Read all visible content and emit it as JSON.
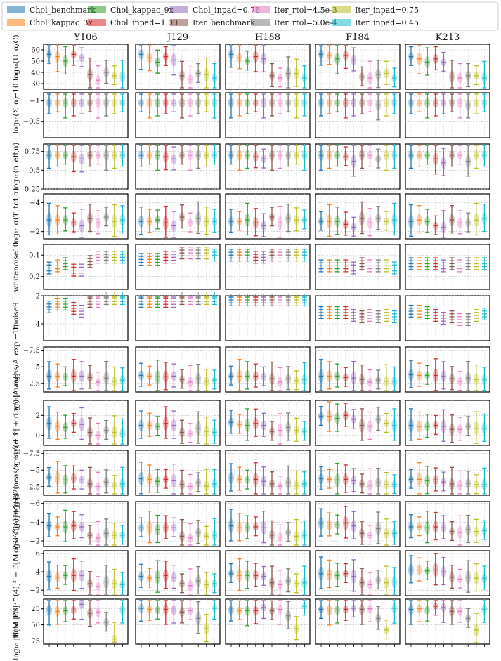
{
  "chart_data": {
    "type": "violin-grid",
    "legend": {
      "placement": "top",
      "entries": [
        {
          "name": "Chol_benchmark",
          "color": "#1f77b4"
        },
        {
          "name": "Chol_kappac_3x",
          "color": "#ff7f0e"
        },
        {
          "name": "Chol_kappac_9x",
          "color": "#2ca02c"
        },
        {
          "name": "Chol_inpad=1.00",
          "color": "#d62728"
        },
        {
          "name": "Chol_inpad=0.76",
          "color": "#9467bd"
        },
        {
          "name": "Iter_benchmark",
          "color": "#8c564b"
        },
        {
          "name": "Iter_rtol=4.5e-3",
          "color": "#e377c2"
        },
        {
          "name": "Iter_rtol=5.0e-4",
          "color": "#7f7f7f"
        },
        {
          "name": "Iter_inpad=0.75",
          "color": "#bcbd22"
        },
        {
          "name": "Iter_inpad=0.45",
          "color": "#17becf"
        }
      ]
    },
    "columns": [
      "Y106",
      "J129",
      "H158",
      "F184",
      "K213"
    ],
    "rows": [
      {
        "ylabel": "−10 log₁₀(U_α/C)",
        "ylim": [
          25,
          65
        ],
        "inverted": false,
        "ticks": [
          30,
          40,
          50,
          60
        ],
        "grid": true,
        "values": [
          [
            56,
            54,
            50,
            56,
            53,
            38,
            33,
            40,
            37,
            36
          ],
          [
            56,
            53,
            49,
            54,
            51,
            37,
            34,
            39,
            38,
            35
          ],
          [
            56,
            53,
            50,
            54,
            52,
            37,
            35,
            39,
            39,
            35
          ],
          [
            56,
            55,
            52,
            55,
            51,
            36,
            35,
            38,
            39,
            35
          ],
          [
            54,
            52,
            49,
            52,
            49,
            36,
            35,
            37,
            37,
            35
          ]
        ]
      },
      {
        "ylabel": "log₁₀(Σ_α)",
        "ylim": [
          -1.2,
          -0.1
        ],
        "inverted": true,
        "ticks": [
          -1.0,
          -0.5
        ],
        "grid": true,
        "values": [
          [
            -0.95,
            -0.95,
            -0.95,
            -0.95,
            -0.95,
            -0.95,
            -0.95,
            -0.95,
            -0.95,
            -0.95
          ],
          [
            -0.95,
            -0.95,
            -0.95,
            -0.95,
            -0.95,
            -0.95,
            -0.95,
            -0.95,
            -0.95,
            -0.95
          ],
          [
            -0.95,
            -0.95,
            -0.95,
            -0.95,
            -0.95,
            -0.95,
            -0.95,
            -0.95,
            -0.95,
            -0.95
          ],
          [
            -0.95,
            -0.95,
            -0.95,
            -0.95,
            -0.95,
            -0.95,
            -0.95,
            -0.9,
            -0.95,
            -0.95
          ],
          [
            -0.95,
            -0.95,
            -0.95,
            -0.95,
            -0.95,
            -0.95,
            -0.95,
            -0.9,
            -0.95,
            -0.95
          ]
        ]
      },
      {
        "ylabel": "log₁₀⟨n̄_eff,α⟩",
        "ylim": [
          0.25,
          0.85
        ],
        "inverted": false,
        "ticks": [
          0.25,
          0.5,
          0.75
        ],
        "grid": true,
        "values": [
          [
            0.7,
            0.7,
            0.7,
            0.68,
            0.65,
            0.7,
            0.7,
            0.7,
            0.7,
            0.7
          ],
          [
            0.7,
            0.7,
            0.7,
            0.68,
            0.65,
            0.7,
            0.7,
            0.7,
            0.7,
            0.7
          ],
          [
            0.7,
            0.7,
            0.7,
            0.68,
            0.65,
            0.7,
            0.7,
            0.7,
            0.7,
            0.7
          ],
          [
            0.7,
            0.7,
            0.7,
            0.68,
            0.62,
            0.7,
            0.7,
            0.65,
            0.7,
            0.7
          ],
          [
            0.7,
            0.7,
            0.7,
            0.65,
            0.6,
            0.7,
            0.7,
            0.62,
            0.7,
            0.7
          ]
        ]
      },
      {
        "ylabel": "log₁₀ σ(T_tot,α)",
        "ylim": [
          -4.6,
          -1.5
        ],
        "inverted": true,
        "ticks": [
          -4,
          -2
        ],
        "grid": true,
        "values": [
          [
            -2.8,
            -2.8,
            -2.8,
            -2.6,
            -2.4,
            -2.9,
            -2.6,
            -3.0,
            -2.7,
            -2.8
          ],
          [
            -2.7,
            -2.7,
            -2.8,
            -2.6,
            -2.4,
            -3.0,
            -2.6,
            -2.9,
            -2.7,
            -2.7
          ],
          [
            -2.7,
            -2.7,
            -2.8,
            -2.6,
            -2.4,
            -3.0,
            -2.6,
            -2.9,
            -2.8,
            -2.8
          ],
          [
            -2.7,
            -2.7,
            -2.7,
            -2.5,
            -2.3,
            -2.9,
            -2.6,
            -2.9,
            -2.7,
            -2.8
          ],
          [
            -2.7,
            -2.8,
            -2.7,
            -2.4,
            -2.3,
            -2.8,
            -2.6,
            -2.6,
            -2.8,
            -2.9
          ]
        ]
      },
      {
        "ylabel": "whitenoise10",
        "ylim": [
          0.05,
          0.26
        ],
        "inverted": true,
        "ticks": [
          0.1,
          0.2
        ],
        "grid": true,
        "values": [
          [
            0.16,
            0.15,
            0.14,
            0.17,
            0.17,
            0.13,
            0.11,
            0.11,
            0.11,
            0.11
          ],
          [
            0.12,
            0.12,
            0.12,
            0.11,
            0.11,
            0.09,
            0.09,
            0.09,
            0.09,
            0.1
          ],
          [
            0.1,
            0.1,
            0.1,
            0.11,
            0.11,
            0.1,
            0.1,
            0.1,
            0.1,
            0.1
          ],
          [
            0.15,
            0.15,
            0.15,
            0.15,
            0.16,
            0.14,
            0.15,
            0.15,
            0.15,
            0.16
          ],
          [
            0.14,
            0.14,
            0.14,
            0.14,
            0.15,
            0.14,
            0.15,
            0.14,
            0.14,
            0.14
          ]
        ]
      },
      {
        "ylabel": "1fnoise9",
        "ylim": [
          2,
          5.2
        ],
        "inverted": true,
        "ticks": [
          2,
          4
        ],
        "grid": true,
        "values": [
          [
            2.8,
            2.6,
            2.6,
            2.9,
            3.1,
            2.4,
            2.4,
            2.2,
            2.2,
            2.2
          ],
          [
            2.4,
            2.4,
            2.4,
            2.4,
            2.4,
            2.2,
            2.2,
            2.2,
            2.2,
            2.2
          ],
          [
            2.3,
            2.3,
            2.3,
            2.3,
            2.3,
            2.3,
            2.3,
            2.3,
            2.3,
            2.3
          ],
          [
            3.2,
            3.2,
            3.2,
            3.2,
            3.4,
            3.5,
            3.4,
            3.5,
            3.4,
            3.5
          ],
          [
            3.1,
            3.1,
            3.2,
            3.4,
            3.6,
            3.5,
            3.7,
            3.7,
            3.4,
            3.3
          ]
        ]
      },
      {
        "ylabel": "log₁₀|A_meas/A_exp − 1|",
        "ylim": [
          -8,
          -1.2
        ],
        "inverted": true,
        "ticks": [
          -7.5,
          -5.0,
          -2.5
        ],
        "grid": true,
        "values": [
          [
            -3.6,
            -3.6,
            -3.5,
            -3.6,
            -3.6,
            -3.4,
            -2.7,
            -3.3,
            -2.8,
            -3.0
          ],
          [
            -3.7,
            -3.6,
            -3.5,
            -3.5,
            -3.6,
            -3.1,
            -2.7,
            -3.2,
            -2.8,
            -3.0
          ],
          [
            -3.6,
            -3.6,
            -3.6,
            -3.6,
            -3.5,
            -3.2,
            -2.7,
            -3.2,
            -2.9,
            -3.1
          ],
          [
            -3.6,
            -3.6,
            -3.6,
            -3.4,
            -3.3,
            -3.1,
            -2.7,
            -3.0,
            -2.8,
            -2.8
          ],
          [
            -3.8,
            -3.7,
            -3.7,
            -3.7,
            -3.6,
            -3.2,
            -2.8,
            -3.3,
            -3.1,
            -3.1
          ]
        ]
      },
      {
        "ylabel": "log₁₀[√(d_x² + d_y²) [mas]]",
        "ylim": [
          -1,
          3.5
        ],
        "inverted": false,
        "ticks": [
          0,
          2
        ],
        "grid": true,
        "values": [
          [
            1.2,
            0.9,
            0.8,
            1.2,
            1.1,
            0.3,
            0.0,
            0.5,
            0.3,
            0.2
          ],
          [
            1.0,
            1.0,
            0.9,
            1.2,
            1.0,
            0.3,
            0.2,
            0.7,
            0.4,
            0.3
          ],
          [
            1.3,
            1.1,
            1.0,
            1.2,
            1.0,
            0.4,
            0.5,
            0.8,
            0.5,
            0.4
          ],
          [
            1.9,
            1.9,
            1.7,
            2.0,
            1.6,
            1.0,
            0.9,
            1.6,
            1.2,
            1.0
          ],
          [
            1.0,
            0.9,
            0.9,
            1.0,
            0.9,
            0.6,
            0.6,
            0.9,
            0.7,
            0.7
          ]
        ]
      },
      {
        "ylabel": "log₁₀|s_meas/s_exp − 1|",
        "ylim": [
          -8,
          -1.2
        ],
        "inverted": true,
        "ticks": [
          -7.5,
          -5.0,
          -2.5
        ],
        "grid": true,
        "values": [
          [
            -3.9,
            -3.8,
            -3.5,
            -3.8,
            -3.5,
            -2.9,
            -2.5,
            -3.2,
            -2.7,
            -2.9
          ],
          [
            -3.7,
            -3.6,
            -3.3,
            -3.6,
            -3.4,
            -2.8,
            -2.5,
            -3.1,
            -2.6,
            -2.9
          ],
          [
            -3.8,
            -3.6,
            -3.5,
            -3.6,
            -3.3,
            -2.9,
            -2.6,
            -3.1,
            -2.7,
            -2.9
          ],
          [
            -3.7,
            -3.6,
            -3.5,
            -3.6,
            -3.4,
            -2.9,
            -2.7,
            -3.1,
            -2.8,
            -2.8
          ],
          [
            -3.6,
            -3.6,
            -3.4,
            -3.5,
            -3.2,
            -2.9,
            -2.7,
            -3.0,
            -2.8,
            -2.8
          ]
        ]
      },
      {
        "ylabel": "log₁₀ √(g₁² + g₂²)",
        "ylim": [
          -6.2,
          -1.4
        ],
        "inverted": true,
        "ticks": [
          -6,
          -4,
          -2
        ],
        "grid": true,
        "values": [
          [
            -3.6,
            -3.5,
            -3.5,
            -3.6,
            -3.5,
            -2.6,
            -2.3,
            -2.8,
            -2.6,
            -2.6
          ],
          [
            -3.4,
            -3.4,
            -3.2,
            -3.4,
            -3.4,
            -2.5,
            -2.3,
            -2.9,
            -2.5,
            -2.6
          ],
          [
            -3.6,
            -3.4,
            -3.4,
            -3.5,
            -3.4,
            -2.6,
            -2.4,
            -2.9,
            -2.5,
            -2.6
          ],
          [
            -3.9,
            -3.7,
            -3.7,
            -3.9,
            -3.6,
            -2.8,
            -2.6,
            -3.3,
            -2.8,
            -2.8
          ],
          [
            -3.5,
            -3.5,
            -3.4,
            -3.5,
            -3.4,
            -3.0,
            -2.9,
            -3.2,
            -3.0,
            -3.1
          ]
        ]
      },
      {
        "ylabel": "log₁₀ |ℜ[M_PSF^(4)]² + ℑ[M_PSF^(4)]²|^(1/2)",
        "ylim": [
          -6.3,
          -1.4
        ],
        "inverted": true,
        "ticks": [
          -6,
          -4,
          -2
        ],
        "grid": true,
        "values": [
          [
            -3.5,
            -3.4,
            -3.6,
            -3.6,
            -3.6,
            -2.7,
            -2.4,
            -2.9,
            -2.7,
            -2.6
          ],
          [
            -3.5,
            -3.3,
            -3.4,
            -3.6,
            -3.4,
            -2.7,
            -2.5,
            -3.0,
            -2.6,
            -2.7
          ],
          [
            -3.8,
            -3.6,
            -3.6,
            -3.6,
            -3.5,
            -2.8,
            -2.6,
            -3.0,
            -2.7,
            -2.8
          ],
          [
            -3.8,
            -3.7,
            -3.6,
            -3.8,
            -3.5,
            -2.8,
            -2.6,
            -3.1,
            -2.8,
            -2.9
          ],
          [
            -4.2,
            -4.2,
            -4.1,
            -4.2,
            -4.0,
            -3.4,
            -3.2,
            -3.4,
            -3.3,
            -3.3
          ]
        ]
      },
      {
        "ylabel": "time [hr]",
        "ylim": [
          10,
          80
        ],
        "inverted": true,
        "ticks": [
          25,
          50,
          75
        ],
        "grid": true,
        "values": [
          [
            27,
            29,
            28,
            27,
            18,
            32,
            30,
            46,
            72,
            27
          ],
          [
            24,
            26,
            27,
            26,
            27,
            30,
            28,
            40,
            56,
            24
          ],
          [
            27,
            28,
            28,
            28,
            23,
            28,
            26,
            36,
            56,
            21
          ],
          [
            26,
            27,
            27,
            26,
            24,
            26,
            25,
            40,
            58,
            24
          ],
          [
            26,
            25,
            27,
            21,
            23,
            29,
            29,
            40,
            58,
            26
          ]
        ]
      }
    ]
  }
}
